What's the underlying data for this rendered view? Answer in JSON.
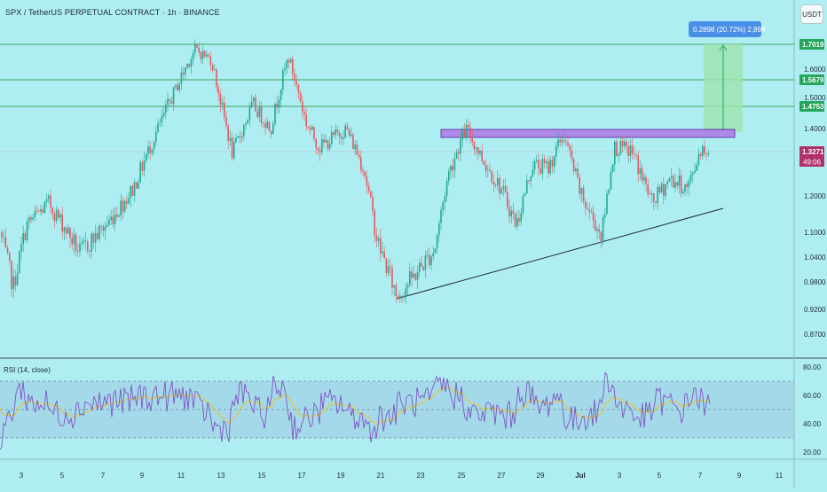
{
  "header": {
    "symbol_title": "SPX / TetherUS PERPETUAL CONTRACT · 1h · BINANCE",
    "currency_button": "USDT"
  },
  "price_axis": {
    "ticks": [
      "1.6000",
      "1.5000",
      "1.4000",
      "1.2000",
      "1.1000",
      "1.0400",
      "0.9800",
      "0.9200",
      "0.8700"
    ],
    "labels": [
      {
        "text": "1.7019",
        "color": "#26a65b",
        "value": 1.7019
      },
      {
        "text": "1.5679",
        "color": "#26a65b",
        "value": 1.5679
      },
      {
        "text": "1.4753",
        "color": "#26a65b",
        "value": 1.4753
      },
      {
        "text": "1.3271",
        "color": "#b0306a",
        "value": 1.3271
      }
    ],
    "countdown": "49:06"
  },
  "measure_tooltip": "0.2898 (20.72%) 2,898",
  "rsi": {
    "title": "RSI (14, close)",
    "ticks": [
      "80.00",
      "60.00",
      "40.00",
      "20.00"
    ]
  },
  "time_axis": {
    "ticks": [
      "3",
      "5",
      "7",
      "9",
      "11",
      "13",
      "15",
      "17",
      "19",
      "21",
      "23",
      "25",
      "27",
      "29",
      "Jul",
      "3",
      "5",
      "7",
      "9",
      "11"
    ]
  },
  "colors": {
    "background": "#aeeef2",
    "candle_up": "#22a98f",
    "candle_down": "#e35a61",
    "resistance_zone": "#b07fe6",
    "target_zone": "#9fe3b0",
    "rsi_line": "#7e57c2",
    "rsi_ma": "#f4c20d"
  }
}
